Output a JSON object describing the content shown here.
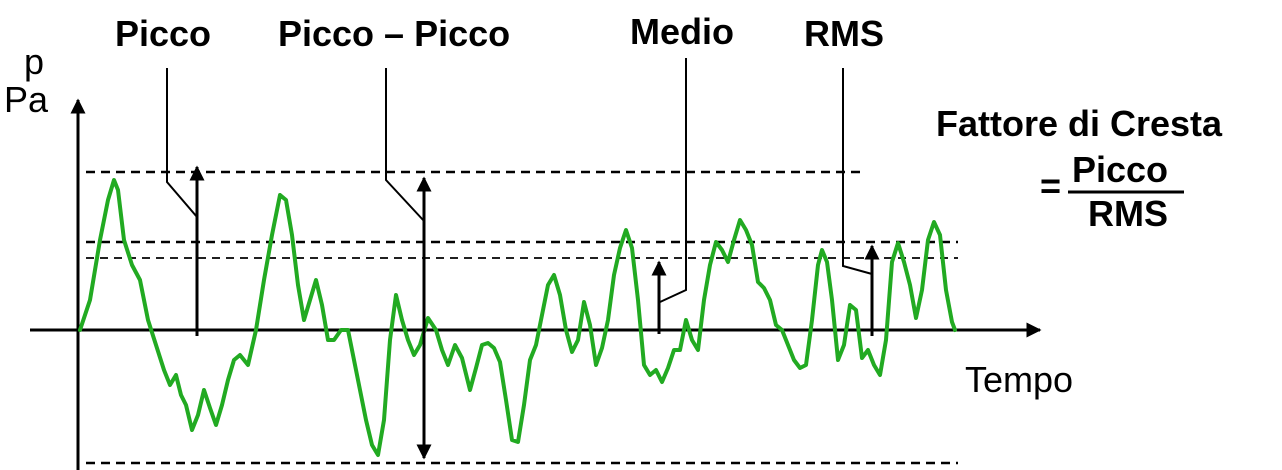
{
  "labels": {
    "peak": "Picco",
    "peak_to_peak": "Picco – Picco",
    "mean": "Medio",
    "rms": "RMS"
  },
  "axes": {
    "y_symbol": "p",
    "y_unit": "Pa",
    "x_label": "Tempo"
  },
  "formula": {
    "title": "Fattore di Cresta",
    "equals": "=",
    "numerator": "Picco",
    "denominator": "RMS"
  },
  "colors": {
    "signal": "#22aa22",
    "ink": "#000000",
    "background": "#ffffff"
  }
}
